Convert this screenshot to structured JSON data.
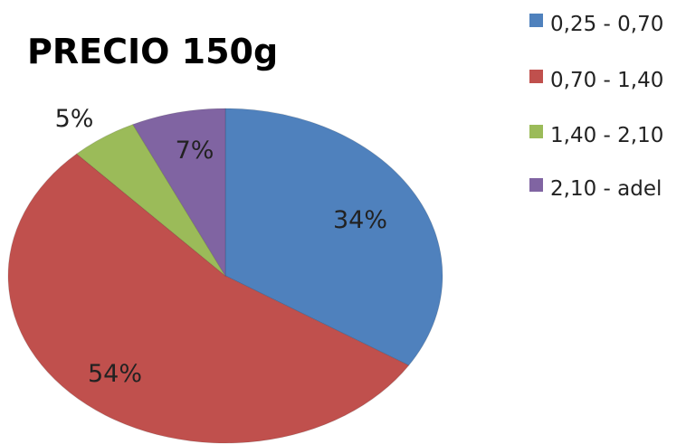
{
  "chart_data": {
    "type": "pie",
    "title": "PRECIO 150g",
    "categories": [
      "0,25 - 0,70",
      "0,70 - 1,40",
      "1,40 - 2,10",
      "2,10 - adel"
    ],
    "values": [
      34,
      54,
      5,
      7
    ],
    "data_labels": [
      "34%",
      "54%",
      "5%",
      "7%"
    ],
    "colors": [
      "#4f81bd",
      "#c0504d",
      "#9bbb59",
      "#8064a2"
    ],
    "legend_position": "right",
    "start_angle": "12 o'clock",
    "direction": "clockwise"
  }
}
